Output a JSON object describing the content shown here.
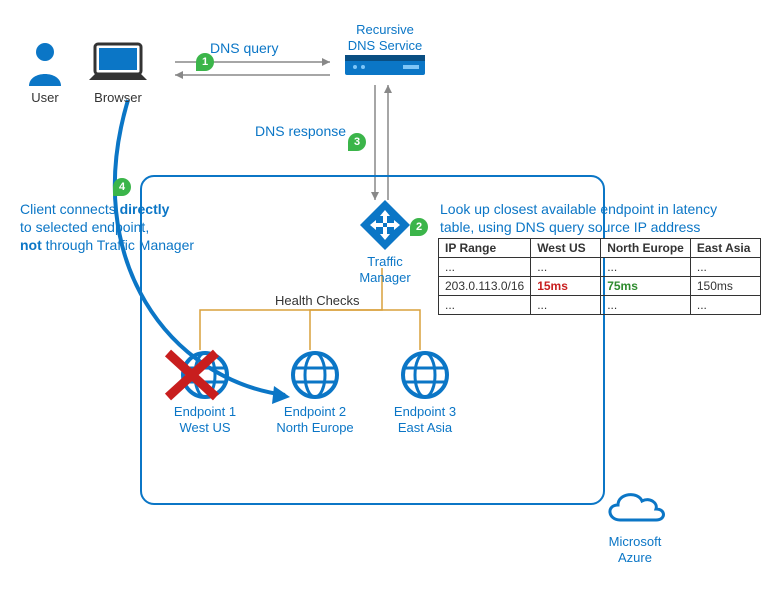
{
  "colors": {
    "azure_blue": "#0b76c6",
    "badge_green": "#3bb54a",
    "arrow_gray": "#888888",
    "orange": "#d9a03b",
    "red": "#c81e1e",
    "green_text": "#2e8b2e",
    "text": "#333333"
  },
  "nodes": {
    "user": {
      "label": "User"
    },
    "browser": {
      "label": "Browser"
    },
    "dns": {
      "label_line1": "Recursive",
      "label_line2": "DNS Service"
    },
    "tm": {
      "label": "Traffic Manager"
    },
    "ep1": {
      "line1": "Endpoint 1",
      "line2": "West US"
    },
    "ep2": {
      "line1": "Endpoint 2",
      "line2": "North Europe"
    },
    "ep3": {
      "line1": "Endpoint 3",
      "line2": "East Asia"
    },
    "azure": {
      "line1": "Microsoft",
      "line2": "Azure"
    }
  },
  "flows": {
    "dns_query": "DNS query",
    "dns_response": "DNS response",
    "health_checks": "Health Checks"
  },
  "badges": {
    "b1": "1",
    "b2": "2",
    "b3": "3",
    "b4": "4"
  },
  "annotations": {
    "client_connects": {
      "pre": "Client connects ",
      "bold1": "directly",
      "mid": "to selected endpoint,",
      "bold2": "not",
      "post": " through Traffic Manager"
    },
    "lookup": {
      "line1": "Look up closest available endpoint in latency",
      "line2": "table, using DNS query source IP address"
    }
  },
  "latency_table": {
    "columns": [
      "IP Range",
      "West US",
      "North Europe",
      "East Asia"
    ],
    "rows": [
      {
        "cells": [
          "...",
          "...",
          "...",
          "..."
        ],
        "styles": [
          "",
          "",
          "",
          ""
        ]
      },
      {
        "cells": [
          "203.0.113.0/16",
          "15ms",
          "75ms",
          "150ms"
        ],
        "styles": [
          "",
          "red",
          "green",
          ""
        ]
      },
      {
        "cells": [
          "...",
          "...",
          "...",
          "..."
        ],
        "styles": [
          "",
          "",
          "",
          ""
        ]
      }
    ]
  }
}
